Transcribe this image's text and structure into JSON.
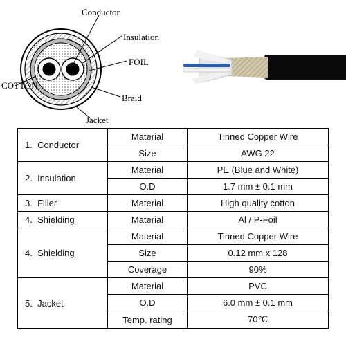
{
  "diagram": {
    "labels": {
      "conductor": "Conductor",
      "insulation": "Insulation",
      "foil": "FOIL",
      "cotton": "COTTON",
      "braid": "Braid",
      "jacket": "Jacket"
    },
    "style": {
      "stroke": "#000000",
      "label_fontsize": 13,
      "outer_radius": 58,
      "braid_radius": 52,
      "foil_radius": 44,
      "inner_group_radius": 36,
      "conductor_ins_radius": 16,
      "conductor_core_radius": 9,
      "hatch_fill": "#cccccc"
    }
  },
  "cable_photo": {
    "jacket_color": "#0a0a0a",
    "braid_color": "#b9a77a",
    "foil_color": "#e8e8e8",
    "wire_colors": [
      "#2a5fb0",
      "#f2f2f2"
    ],
    "background": "#ffffff"
  },
  "table": {
    "border_color": "#000000",
    "font_size": 13,
    "rows": [
      {
        "layer_no": "1.",
        "layer": "Conductor",
        "rowspan": 2,
        "props": [
          {
            "prop": "Material",
            "val": "Tinned Copper Wire"
          },
          {
            "prop": "Size",
            "val": "AWG 22"
          }
        ]
      },
      {
        "layer_no": "2.",
        "layer": "Insulation",
        "rowspan": 2,
        "props": [
          {
            "prop": "Material",
            "val": "PE (Blue and White)"
          },
          {
            "prop": "O.D",
            "val": "1.7 mm ± 0.1 mm"
          }
        ]
      },
      {
        "layer_no": "3.",
        "layer": "Filler",
        "rowspan": 1,
        "props": [
          {
            "prop": "Material",
            "val": "High quality cotton"
          }
        ]
      },
      {
        "layer_no": "4.",
        "layer": "Shielding",
        "rowspan": 1,
        "props": [
          {
            "prop": "Material",
            "val": "Al / P-Foil"
          }
        ]
      },
      {
        "layer_no": "4.",
        "layer": "Shielding",
        "rowspan": 3,
        "props": [
          {
            "prop": "Material",
            "val": "Tinned Copper Wire"
          },
          {
            "prop": "Size",
            "val": "0.12 mm x 128"
          },
          {
            "prop": "Coverage",
            "val": "90%"
          }
        ]
      },
      {
        "layer_no": "5.",
        "layer": "Jacket",
        "rowspan": 3,
        "props": [
          {
            "prop": "Material",
            "val": "PVC"
          },
          {
            "prop": "O.D",
            "val": "6.0 mm ± 0.1 mm"
          },
          {
            "prop": "Temp. rating",
            "val": "70℃"
          }
        ]
      }
    ]
  }
}
